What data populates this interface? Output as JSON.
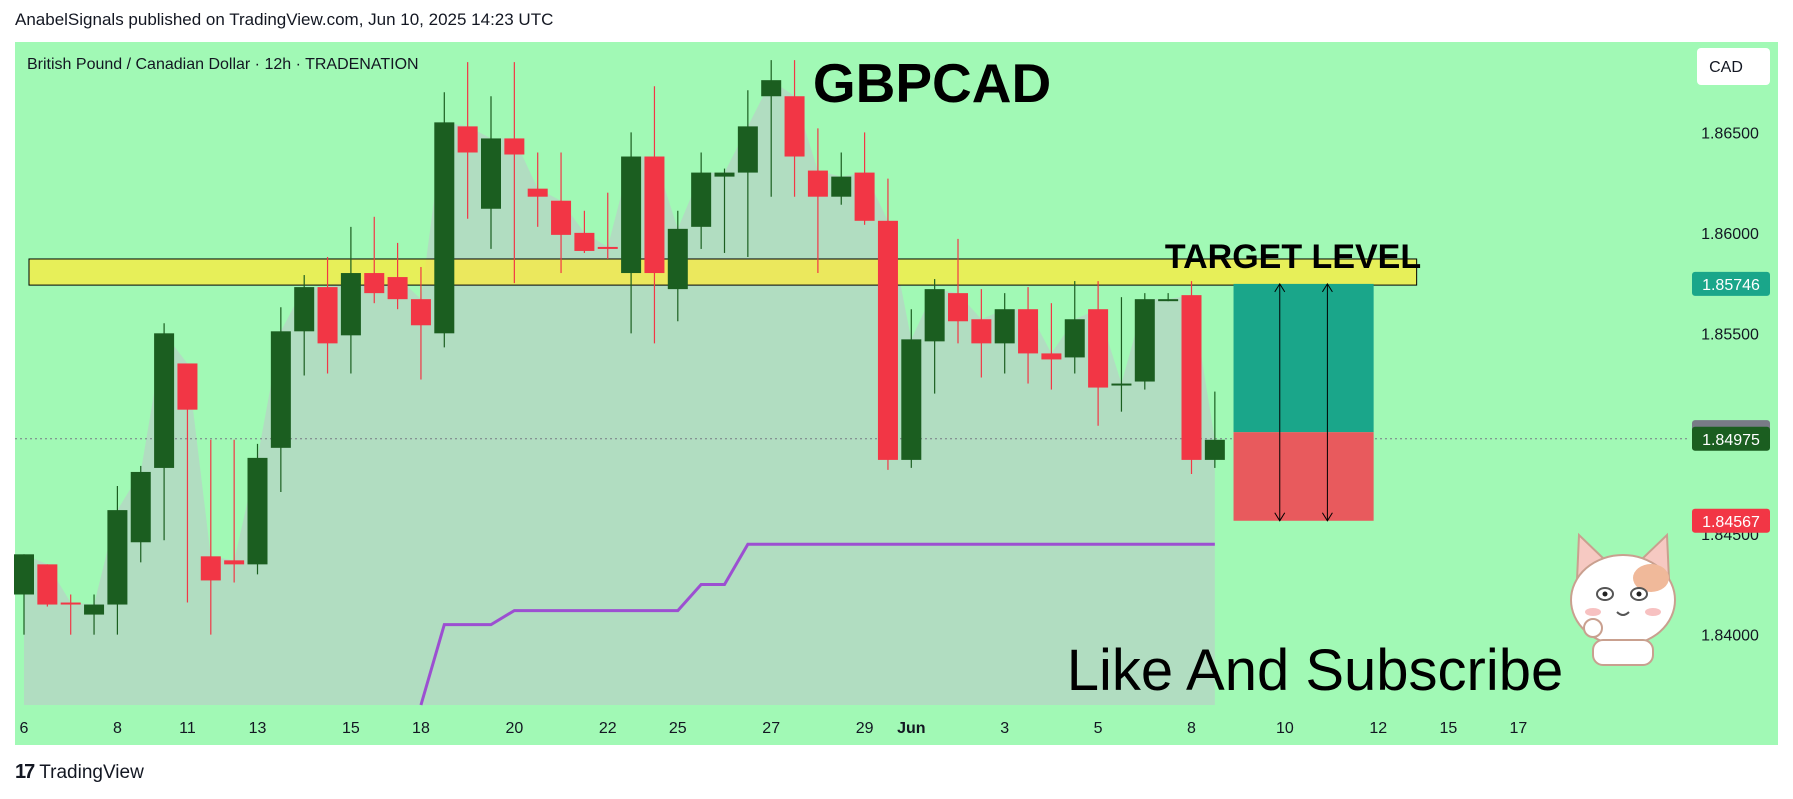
{
  "header": {
    "publish_line": "AnabelSignals published on TradingView.com, Jun 10, 2025 14:23 UTC"
  },
  "footer": {
    "brand": "TradingView",
    "logo_icon": "tradingview-logo-icon"
  },
  "colors": {
    "background": "#a1f9b5",
    "bull": "#1b5e20",
    "bear": "#f23645",
    "cloud": "#b4d8c3",
    "target_band": "#ffeb3b",
    "trail": "#9c4fd1",
    "profit_zone": "#1aa68a",
    "loss_zone": "#e85a5d"
  },
  "chart_data": {
    "type": "candlestick",
    "symbol_line": "British Pound / Canadian Dollar · 12h · TRADENATION",
    "title": "GBPCAD",
    "currency_button": "CAD",
    "ylim": [
      1.8365,
      1.8695
    ],
    "y_ticks": [
      "1.86500",
      "1.86000",
      "1.85500",
      "1.84500",
      "1.84000"
    ],
    "price_tags": [
      {
        "label": "1.85746",
        "value": 1.85746,
        "color": "#1aa68a"
      },
      {
        "label": "1.85008",
        "value": 1.85008,
        "color": "#787b86"
      },
      {
        "label": "1.84975",
        "value": 1.84975,
        "color": "#1b5e20"
      },
      {
        "label": "1.84567",
        "value": 1.84567,
        "color": "#f23645"
      }
    ],
    "x_ticks": [
      "6",
      "8",
      "11",
      "13",
      "15",
      "18",
      "20",
      "22",
      "25",
      "27",
      "29",
      "Jun",
      "3",
      "5",
      "8",
      "10",
      "12",
      "15",
      "17"
    ],
    "x_tick_positions": [
      0,
      4,
      7,
      10,
      14,
      17,
      21,
      25,
      28,
      32,
      36,
      38,
      42,
      46,
      50,
      54,
      58,
      61,
      64
    ],
    "candles": [
      {
        "o": 1.842,
        "h": 1.844,
        "l": 1.84,
        "c": 1.844
      },
      {
        "o": 1.8435,
        "h": 1.8435,
        "l": 1.8414,
        "c": 1.8415
      },
      {
        "o": 1.8416,
        "h": 1.842,
        "l": 1.84,
        "c": 1.8415
      },
      {
        "o": 1.841,
        "h": 1.842,
        "l": 1.84,
        "c": 1.8415
      },
      {
        "o": 1.8415,
        "h": 1.8474,
        "l": 1.84,
        "c": 1.8462
      },
      {
        "o": 1.8446,
        "h": 1.8484,
        "l": 1.8436,
        "c": 1.8481
      },
      {
        "o": 1.8483,
        "h": 1.8555,
        "l": 1.8447,
        "c": 1.855
      },
      {
        "o": 1.8535,
        "h": 1.8535,
        "l": 1.8416,
        "c": 1.8512
      },
      {
        "o": 1.8439,
        "h": 1.8497,
        "l": 1.84,
        "c": 1.8427
      },
      {
        "o": 1.8437,
        "h": 1.8497,
        "l": 1.8426,
        "c": 1.8435
      },
      {
        "o": 1.8435,
        "h": 1.8495,
        "l": 1.843,
        "c": 1.8488
      },
      {
        "o": 1.8493,
        "h": 1.8563,
        "l": 1.8471,
        "c": 1.8551
      },
      {
        "o": 1.8551,
        "h": 1.8579,
        "l": 1.8529,
        "c": 1.8573
      },
      {
        "o": 1.8573,
        "h": 1.8588,
        "l": 1.853,
        "c": 1.8545
      },
      {
        "o": 1.8549,
        "h": 1.8603,
        "l": 1.853,
        "c": 1.858
      },
      {
        "o": 1.858,
        "h": 1.8608,
        "l": 1.8565,
        "c": 1.857
      },
      {
        "o": 1.8578,
        "h": 1.8595,
        "l": 1.8562,
        "c": 1.8567
      },
      {
        "o": 1.8567,
        "h": 1.8583,
        "l": 1.8527,
        "c": 1.8554
      },
      {
        "o": 1.855,
        "h": 1.867,
        "l": 1.8543,
        "c": 1.8655
      },
      {
        "o": 1.8653,
        "h": 1.8685,
        "l": 1.8607,
        "c": 1.864
      },
      {
        "o": 1.8612,
        "h": 1.8668,
        "l": 1.8592,
        "c": 1.8647
      },
      {
        "o": 1.8647,
        "h": 1.8685,
        "l": 1.8575,
        "c": 1.8639
      },
      {
        "o": 1.8622,
        "h": 1.864,
        "l": 1.8603,
        "c": 1.8618
      },
      {
        "o": 1.8616,
        "h": 1.864,
        "l": 1.858,
        "c": 1.8599
      },
      {
        "o": 1.86,
        "h": 1.8611,
        "l": 1.859,
        "c": 1.8591
      },
      {
        "o": 1.8593,
        "h": 1.862,
        "l": 1.8587,
        "c": 1.8592
      },
      {
        "o": 1.858,
        "h": 1.865,
        "l": 1.855,
        "c": 1.8638
      },
      {
        "o": 1.8638,
        "h": 1.8673,
        "l": 1.8545,
        "c": 1.858
      },
      {
        "o": 1.8572,
        "h": 1.8611,
        "l": 1.8556,
        "c": 1.8602
      },
      {
        "o": 1.8603,
        "h": 1.864,
        "l": 1.8592,
        "c": 1.863
      },
      {
        "o": 1.8628,
        "h": 1.8632,
        "l": 1.859,
        "c": 1.863
      },
      {
        "o": 1.863,
        "h": 1.8671,
        "l": 1.8588,
        "c": 1.8653
      },
      {
        "o": 1.8668,
        "h": 1.8686,
        "l": 1.8618,
        "c": 1.8676
      },
      {
        "o": 1.8668,
        "h": 1.8686,
        "l": 1.8618,
        "c": 1.8638
      },
      {
        "o": 1.8631,
        "h": 1.8652,
        "l": 1.858,
        "c": 1.8618
      },
      {
        "o": 1.8618,
        "h": 1.864,
        "l": 1.8614,
        "c": 1.8628
      },
      {
        "o": 1.863,
        "h": 1.865,
        "l": 1.8604,
        "c": 1.8606
      },
      {
        "o": 1.8606,
        "h": 1.8627,
        "l": 1.8482,
        "c": 1.8487
      },
      {
        "o": 1.8487,
        "h": 1.8562,
        "l": 1.8483,
        "c": 1.8547
      },
      {
        "o": 1.8546,
        "h": 1.8577,
        "l": 1.852,
        "c": 1.8572
      },
      {
        "o": 1.857,
        "h": 1.8597,
        "l": 1.8545,
        "c": 1.8556
      },
      {
        "o": 1.8557,
        "h": 1.8572,
        "l": 1.8528,
        "c": 1.8545
      },
      {
        "o": 1.8545,
        "h": 1.857,
        "l": 1.853,
        "c": 1.8562
      },
      {
        "o": 1.8562,
        "h": 1.8573,
        "l": 1.8525,
        "c": 1.854
      },
      {
        "o": 1.854,
        "h": 1.8565,
        "l": 1.8522,
        "c": 1.8537
      },
      {
        "o": 1.8538,
        "h": 1.8576,
        "l": 1.853,
        "c": 1.8557
      },
      {
        "o": 1.8562,
        "h": 1.8576,
        "l": 1.8504,
        "c": 1.8523
      },
      {
        "o": 1.8525,
        "h": 1.8568,
        "l": 1.8511,
        "c": 1.8525
      },
      {
        "o": 1.8526,
        "h": 1.857,
        "l": 1.8522,
        "c": 1.8567
      },
      {
        "o": 1.8567,
        "h": 1.857,
        "l": 1.8566,
        "c": 1.8567
      },
      {
        "o": 1.8569,
        "h": 1.8576,
        "l": 1.848,
        "c": 1.8487
      },
      {
        "o": 1.8487,
        "h": 1.8521,
        "l": 1.8483,
        "c": 1.8497
      }
    ],
    "trail_line": [
      [
        17,
        1.8365
      ],
      [
        18,
        1.8405
      ],
      [
        20,
        1.8405
      ],
      [
        21,
        1.8412
      ],
      [
        28,
        1.8412
      ],
      [
        29,
        1.8425
      ],
      [
        30,
        1.8425
      ],
      [
        31,
        1.8445
      ],
      [
        51,
        1.8445
      ]
    ],
    "current_price": 1.84975,
    "current_price_line_color": "#787b86",
    "zones": {
      "target_band": {
        "low": 1.8574,
        "high": 1.8587,
        "x_from": 0,
        "x_to": 59
      },
      "target_label": "TARGET LEVEL",
      "position": {
        "entry": 1.85008,
        "target": 1.85746,
        "stop": 1.84567,
        "x_from": 51.8,
        "x_to": 57.8
      }
    },
    "annotation": "Like And Subscribe",
    "mascot_icon": "cat-mascot-icon"
  }
}
